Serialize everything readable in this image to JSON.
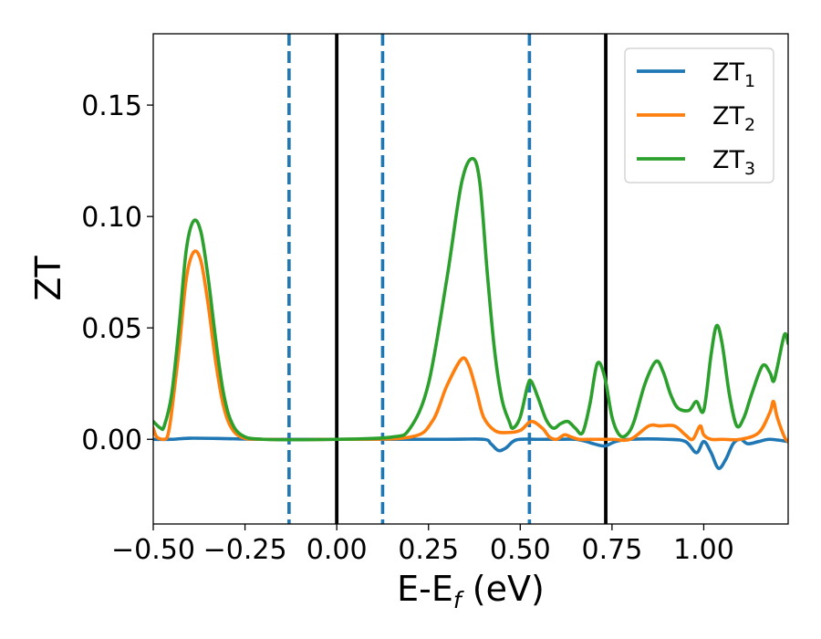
{
  "chart_data": {
    "type": "line",
    "xlabel": "E-E_f (eV)",
    "ylabel": "ZT",
    "xlim": [
      -0.5,
      1.23
    ],
    "ylim": [
      -0.038,
      0.182
    ],
    "x_ticks": [
      -0.5,
      -0.25,
      0.0,
      0.25,
      0.5,
      0.75,
      1.0
    ],
    "x_tick_labels": [
      "−0.50",
      "−0.25",
      "0.00",
      "0.25",
      "0.50",
      "0.75",
      "1.00"
    ],
    "y_ticks": [
      0.0,
      0.05,
      0.1,
      0.15
    ],
    "y_tick_labels": [
      "0.00",
      "0.05",
      "0.10",
      "0.15"
    ],
    "grid": false,
    "legend_position": "top-right",
    "vertical_lines": [
      {
        "x": -0.13,
        "style": "dashed",
        "color": "#1f77b4"
      },
      {
        "x": 0.0,
        "style": "solid",
        "color": "#000000"
      },
      {
        "x": 0.125,
        "style": "dashed",
        "color": "#1f77b4"
      },
      {
        "x": 0.525,
        "style": "dashed",
        "color": "#1f77b4"
      },
      {
        "x": 0.733,
        "style": "solid",
        "color": "#000000"
      }
    ],
    "series": [
      {
        "name": "ZT",
        "subscript": "1",
        "color": "#1f77b4",
        "points": [
          [
            -0.5,
            0.0
          ],
          [
            -0.45,
            0.0
          ],
          [
            -0.4,
            0.0005
          ],
          [
            -0.3,
            0.0003
          ],
          [
            -0.2,
            0.0
          ],
          [
            0.0,
            0.0
          ],
          [
            0.3,
            0.0
          ],
          [
            0.4,
            0.0
          ],
          [
            0.42,
            -0.002
          ],
          [
            0.44,
            -0.005
          ],
          [
            0.46,
            -0.004
          ],
          [
            0.48,
            -0.001
          ],
          [
            0.5,
            0.0
          ],
          [
            0.55,
            0.0
          ],
          [
            0.6,
            0.0
          ],
          [
            0.65,
            0.0
          ],
          [
            0.68,
            -0.001
          ],
          [
            0.7,
            -0.002
          ],
          [
            0.73,
            -0.003
          ],
          [
            0.76,
            -0.001
          ],
          [
            0.8,
            0.0
          ],
          [
            0.9,
            0.0
          ],
          [
            0.95,
            -0.001
          ],
          [
            0.98,
            -0.006
          ],
          [
            1.0,
            -0.001
          ],
          [
            1.02,
            -0.006
          ],
          [
            1.04,
            -0.013
          ],
          [
            1.06,
            -0.009
          ],
          [
            1.08,
            -0.002
          ],
          [
            1.1,
            0.0
          ],
          [
            1.12,
            -0.002
          ],
          [
            1.15,
            -0.001
          ],
          [
            1.18,
            0.0
          ],
          [
            1.23,
            -0.001
          ]
        ]
      },
      {
        "name": "ZT",
        "subscript": "2",
        "color": "#ff7f0e",
        "points": [
          [
            -0.5,
            0.005
          ],
          [
            -0.49,
            0.001
          ],
          [
            -0.47,
            0.0
          ],
          [
            -0.46,
            0.002
          ],
          [
            -0.45,
            0.012
          ],
          [
            -0.43,
            0.04
          ],
          [
            -0.41,
            0.072
          ],
          [
            -0.39,
            0.084
          ],
          [
            -0.37,
            0.08
          ],
          [
            -0.35,
            0.06
          ],
          [
            -0.33,
            0.035
          ],
          [
            -0.31,
            0.016
          ],
          [
            -0.29,
            0.006
          ],
          [
            -0.26,
            0.001
          ],
          [
            -0.2,
            0.0
          ],
          [
            0.0,
            0.0
          ],
          [
            0.2,
            0.001
          ],
          [
            0.26,
            0.008
          ],
          [
            0.3,
            0.024
          ],
          [
            0.34,
            0.036
          ],
          [
            0.36,
            0.033
          ],
          [
            0.38,
            0.022
          ],
          [
            0.4,
            0.01
          ],
          [
            0.43,
            0.004
          ],
          [
            0.46,
            0.003
          ],
          [
            0.5,
            0.004
          ],
          [
            0.53,
            0.008
          ],
          [
            0.56,
            0.005
          ],
          [
            0.58,
            0.001
          ],
          [
            0.6,
            0.0
          ],
          [
            0.62,
            0.002
          ],
          [
            0.64,
            0.001
          ],
          [
            0.66,
            0.0
          ],
          [
            0.7,
            0.0
          ],
          [
            0.75,
            0.0
          ],
          [
            0.8,
            0.0
          ],
          [
            0.85,
            0.006
          ],
          [
            0.88,
            0.006
          ],
          [
            0.92,
            0.006
          ],
          [
            0.95,
            0.002
          ],
          [
            0.97,
            0.0
          ],
          [
            0.99,
            0.006
          ],
          [
            1.0,
            0.002
          ],
          [
            1.02,
            0.0
          ],
          [
            1.05,
            0.0
          ],
          [
            1.1,
            0.0
          ],
          [
            1.15,
            0.003
          ],
          [
            1.18,
            0.012
          ],
          [
            1.19,
            0.017
          ],
          [
            1.2,
            0.01
          ],
          [
            1.22,
            0.001
          ],
          [
            1.23,
            -0.001
          ]
        ]
      },
      {
        "name": "ZT",
        "subscript": "3",
        "color": "#2ca02c",
        "points": [
          [
            -0.5,
            0.008
          ],
          [
            -0.48,
            0.005
          ],
          [
            -0.47,
            0.006
          ],
          [
            -0.45,
            0.02
          ],
          [
            -0.43,
            0.05
          ],
          [
            -0.41,
            0.085
          ],
          [
            -0.39,
            0.098
          ],
          [
            -0.37,
            0.093
          ],
          [
            -0.35,
            0.072
          ],
          [
            -0.33,
            0.045
          ],
          [
            -0.31,
            0.022
          ],
          [
            -0.29,
            0.009
          ],
          [
            -0.26,
            0.002
          ],
          [
            -0.2,
            0.0
          ],
          [
            0.0,
            0.0
          ],
          [
            0.15,
            0.001
          ],
          [
            0.2,
            0.005
          ],
          [
            0.25,
            0.025
          ],
          [
            0.3,
            0.072
          ],
          [
            0.34,
            0.115
          ],
          [
            0.37,
            0.126
          ],
          [
            0.39,
            0.115
          ],
          [
            0.41,
            0.075
          ],
          [
            0.43,
            0.04
          ],
          [
            0.45,
            0.018
          ],
          [
            0.47,
            0.008
          ],
          [
            0.48,
            0.005
          ],
          [
            0.5,
            0.01
          ],
          [
            0.52,
            0.024
          ],
          [
            0.53,
            0.026
          ],
          [
            0.55,
            0.018
          ],
          [
            0.57,
            0.009
          ],
          [
            0.59,
            0.005
          ],
          [
            0.61,
            0.007
          ],
          [
            0.63,
            0.008
          ],
          [
            0.65,
            0.005
          ],
          [
            0.67,
            0.003
          ],
          [
            0.69,
            0.016
          ],
          [
            0.71,
            0.034
          ],
          [
            0.73,
            0.028
          ],
          [
            0.75,
            0.01
          ],
          [
            0.77,
            0.002
          ],
          [
            0.79,
            0.002
          ],
          [
            0.81,
            0.008
          ],
          [
            0.84,
            0.025
          ],
          [
            0.87,
            0.035
          ],
          [
            0.89,
            0.03
          ],
          [
            0.91,
            0.02
          ],
          [
            0.93,
            0.014
          ],
          [
            0.96,
            0.013
          ],
          [
            0.98,
            0.017
          ],
          [
            1.0,
            0.013
          ],
          [
            1.02,
            0.038
          ],
          [
            1.035,
            0.051
          ],
          [
            1.05,
            0.043
          ],
          [
            1.07,
            0.02
          ],
          [
            1.09,
            0.006
          ],
          [
            1.11,
            0.01
          ],
          [
            1.13,
            0.02
          ],
          [
            1.16,
            0.033
          ],
          [
            1.18,
            0.03
          ],
          [
            1.19,
            0.026
          ],
          [
            1.2,
            0.032
          ],
          [
            1.22,
            0.047
          ],
          [
            1.23,
            0.043
          ]
        ]
      }
    ]
  }
}
